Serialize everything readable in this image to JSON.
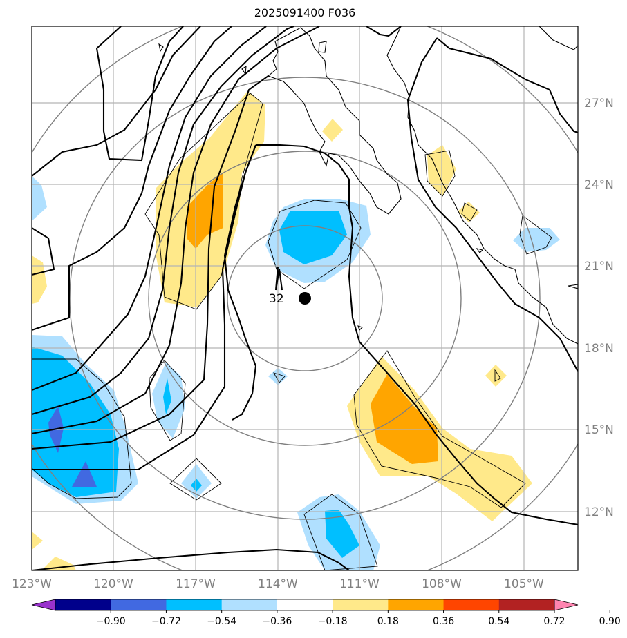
{
  "title": "2025091400 F036",
  "map": {
    "projection": "plate-carree",
    "lon_range": [
      -123,
      -102.5
    ],
    "lat_range": [
      9.7,
      29.8
    ],
    "lon_ticks": [
      "123°W",
      "120°W",
      "117°W",
      "114°W",
      "111°W",
      "108°W",
      "105°W"
    ],
    "lat_ticks": [
      "27°N",
      "24°N",
      "21°N",
      "18°N",
      "15°N",
      "12°N"
    ],
    "gridlines": true,
    "center_marker": {
      "lon": -113.0,
      "lat": 19.8
    },
    "range_rings": 4,
    "contour_label": "32"
  },
  "colorbar": {
    "labels": [
      "−0.90",
      "−0.72",
      "−0.54",
      "−0.36",
      "−0.18",
      "0.18",
      "0.36",
      "0.54",
      "0.72",
      "0.90"
    ],
    "colors": [
      "#9932CC",
      "#00008B",
      "#4169E1",
      "#00BFFF",
      "#B0E0FF",
      "#FFFFFF",
      "#FFE98A",
      "#FFA500",
      "#FF4500",
      "#B22222",
      "#FF85B0"
    ],
    "extend": "both"
  },
  "legend_colors": {
    "contour": "#000000",
    "grid": "#b4b4b4",
    "coast": "#000000"
  }
}
